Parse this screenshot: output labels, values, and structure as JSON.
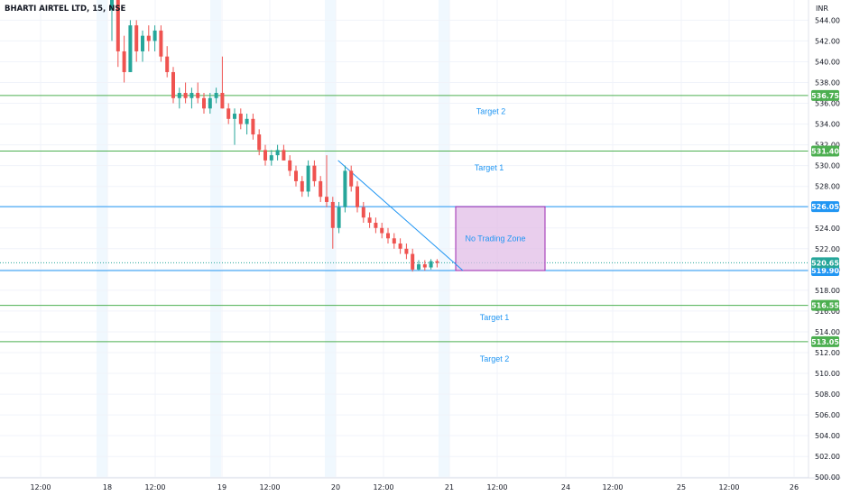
{
  "header": {
    "title": "BHARTI AIRTEL LTD, 15, NSE",
    "currency": "INR"
  },
  "colors": {
    "up": "#26a69a",
    "down": "#ef5350",
    "target_line": "#4caf50",
    "zone_line": "#2196F3",
    "zone_fill": "#e1bee7",
    "zone_border": "#9c27b0",
    "annotation": "#2196F3",
    "grid": "#f0f3fa",
    "session_band": "#e3f2fd"
  },
  "chart_data": {
    "type": "candlestick",
    "y_axis": {
      "range": [
        499,
        546
      ],
      "ticks": [
        500,
        502,
        504,
        506,
        508,
        510,
        512,
        514,
        516,
        518,
        520,
        522,
        524,
        526,
        528,
        530,
        532,
        534,
        536,
        538,
        540,
        542,
        544
      ]
    },
    "x_axis": {
      "labels": [
        "12:00",
        "18",
        "12:00",
        "19",
        "12:00",
        "20",
        "12:00",
        "21",
        "12:00",
        "24",
        "12:00",
        "25",
        "12:00",
        "26"
      ]
    },
    "candles": [
      [
        545.0,
        549.0,
        542.0,
        546.0
      ],
      [
        546.0,
        547.0,
        539.5,
        541.0
      ],
      [
        541.0,
        542.5,
        538.0,
        539.0
      ],
      [
        539.0,
        544.0,
        539.0,
        543.5
      ],
      [
        543.5,
        544.0,
        540.0,
        541.0
      ],
      [
        541.0,
        543.0,
        540.0,
        542.5
      ],
      [
        542.5,
        543.5,
        541.0,
        542.0
      ],
      [
        542.0,
        543.5,
        541.0,
        543.0
      ],
      [
        543.0,
        543.5,
        540.0,
        540.5
      ],
      [
        540.5,
        541.5,
        538.5,
        539.0
      ],
      [
        539.0,
        539.5,
        536.0,
        536.5
      ],
      [
        536.5,
        537.5,
        535.5,
        537.0
      ],
      [
        537.0,
        538.0,
        536.0,
        536.5
      ],
      [
        536.5,
        537.5,
        535.5,
        537.0
      ],
      [
        537.0,
        538.0,
        536.0,
        536.5
      ],
      [
        536.5,
        537.0,
        535.0,
        535.5
      ],
      [
        535.5,
        537.0,
        535.0,
        536.5
      ],
      [
        536.5,
        537.5,
        536.0,
        537.0
      ],
      [
        537.0,
        540.5,
        535.5,
        535.5
      ],
      [
        535.5,
        536.0,
        534.0,
        534.5
      ],
      [
        534.5,
        535.5,
        532.0,
        535.0
      ],
      [
        535.0,
        535.5,
        533.5,
        534.0
      ],
      [
        534.0,
        535.0,
        533.0,
        534.5
      ],
      [
        534.5,
        535.0,
        532.5,
        533.0
      ],
      [
        533.0,
        533.5,
        531.0,
        531.5
      ],
      [
        531.5,
        532.0,
        530.0,
        530.5
      ],
      [
        530.5,
        531.5,
        530.0,
        531.0
      ],
      [
        531.0,
        532.0,
        530.5,
        531.5
      ],
      [
        531.5,
        532.0,
        530.5,
        530.5
      ],
      [
        530.5,
        531.0,
        529.0,
        529.5
      ],
      [
        529.5,
        530.0,
        528.0,
        528.5
      ],
      [
        528.5,
        529.0,
        527.0,
        527.5
      ],
      [
        527.5,
        530.5,
        527.0,
        530.0
      ],
      [
        530.0,
        530.5,
        528.0,
        528.5
      ],
      [
        528.5,
        529.0,
        526.5,
        527.0
      ],
      [
        527.0,
        531.0,
        526.0,
        526.5
      ],
      [
        526.5,
        527.0,
        522.0,
        524.0
      ],
      [
        524.0,
        526.5,
        523.5,
        526.0
      ],
      [
        526.0,
        530.0,
        525.5,
        529.5
      ],
      [
        529.5,
        530.0,
        527.5,
        528.0
      ],
      [
        528.0,
        528.5,
        525.5,
        526.0
      ],
      [
        526.0,
        526.5,
        524.5,
        525.0
      ],
      [
        525.0,
        525.5,
        524.0,
        524.5
      ],
      [
        524.5,
        525.0,
        523.5,
        524.0
      ],
      [
        524.0,
        524.5,
        523.0,
        523.5
      ],
      [
        523.5,
        524.0,
        522.5,
        523.0
      ],
      [
        523.0,
        523.5,
        522.0,
        522.5
      ],
      [
        522.5,
        523.0,
        521.5,
        522.0
      ],
      [
        522.0,
        522.5,
        521.0,
        521.5
      ],
      [
        521.5,
        522.0,
        519.8,
        520.0
      ],
      [
        520.0,
        520.9,
        519.9,
        520.5
      ],
      [
        520.5,
        520.9,
        519.9,
        520.2
      ],
      [
        520.2,
        521.0,
        520.0,
        520.8
      ],
      [
        520.8,
        521.0,
        520.2,
        520.65
      ]
    ],
    "horizontal_levels": [
      {
        "price": 536.75,
        "label": "536.75",
        "kind": "target"
      },
      {
        "price": 531.4,
        "label": "531.40",
        "kind": "target"
      },
      {
        "price": 526.05,
        "label": "526.05",
        "kind": "zone"
      },
      {
        "price": 519.9,
        "label": "519.90",
        "kind": "zone"
      },
      {
        "price": 516.55,
        "label": "516.55",
        "kind": "target"
      },
      {
        "price": 513.05,
        "label": "513.05",
        "kind": "target"
      }
    ],
    "last_price": {
      "price": 520.65,
      "label": "520.65"
    },
    "annotations": [
      {
        "text": "Target 2",
        "price": 535.2
      },
      {
        "text": "Target 1",
        "price": 529.8
      },
      {
        "text": "No Trading Zone",
        "price": 523.0
      },
      {
        "text": "Target 1",
        "price": 515.4
      },
      {
        "text": "Target 2",
        "price": 511.4
      }
    ],
    "no_trade_zone": {
      "top": 526.05,
      "bottom": 519.9
    },
    "trendline": {
      "from": [
        530.5
      ],
      "to": [
        519.9
      ]
    }
  }
}
